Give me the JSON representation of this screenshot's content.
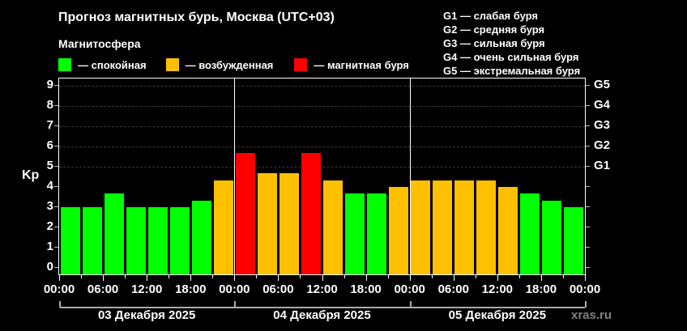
{
  "header": {
    "title": "Прогноз магнитных бурь, Москва (UTC+03)",
    "subtitle": "Магнитосфера"
  },
  "legend": [
    {
      "label": "— спокойная",
      "color": "#00FF00"
    },
    {
      "label": "— возбужденная",
      "color": "#FFC000"
    },
    {
      "label": "— магнитная буря",
      "color": "#FF0000"
    }
  ],
  "gscale": [
    "G1 — слабая буря",
    "G2 — средняя буря",
    "G3 — сильная буря",
    "G4 — очень сильная буря",
    "G5 — экстремальная буря"
  ],
  "watermark": "xras.ru",
  "chart_data": {
    "type": "bar",
    "title": "Прогноз магнитных бурь, Москва (UTC+03)",
    "subtitle": "Магнитосфера",
    "xlabel": "",
    "ylabel": "Kp",
    "ylim": [
      0,
      9
    ],
    "yticks": [
      0,
      1,
      2,
      3,
      4,
      5,
      6,
      7,
      8,
      9
    ],
    "right_axis_labels": {
      "5": "G1",
      "6": "G2",
      "7": "G3",
      "8": "G4",
      "9": "G5"
    },
    "grid": "horizontal dashed at Kp 5-9",
    "xtick_labels": [
      "00:00",
      "06:00",
      "12:00",
      "18:00",
      "00:00",
      "06:00",
      "12:00",
      "18:00",
      "00:00",
      "06:00",
      "12:00",
      "18:00",
      "00:00"
    ],
    "days": [
      "03 Декабря 2025",
      "04 Декабря 2025",
      "05 Декабря 2025"
    ],
    "categories": [
      "03.12 00:00",
      "03.12 03:00",
      "03.12 06:00",
      "03.12 09:00",
      "03.12 12:00",
      "03.12 15:00",
      "03.12 18:00",
      "03.12 21:00",
      "04.12 00:00",
      "04.12 03:00",
      "04.12 06:00",
      "04.12 09:00",
      "04.12 12:00",
      "04.12 15:00",
      "04.12 18:00",
      "04.12 21:00",
      "05.12 00:00",
      "05.12 03:00",
      "05.12 06:00",
      "05.12 09:00",
      "05.12 12:00",
      "05.12 15:00",
      "05.12 18:00",
      "05.12 21:00"
    ],
    "values": [
      3,
      3,
      3.67,
      3,
      3,
      3,
      3.33,
      4.33,
      5.67,
      4.67,
      4.67,
      5.67,
      4.33,
      3.67,
      3.67,
      4,
      4.33,
      4.33,
      4.33,
      4.33,
      4,
      3.67,
      3.33,
      3
    ],
    "status": [
      "calm",
      "calm",
      "calm",
      "calm",
      "calm",
      "calm",
      "calm",
      "excited",
      "storm",
      "excited",
      "excited",
      "storm",
      "excited",
      "calm",
      "calm",
      "excited",
      "excited",
      "excited",
      "excited",
      "excited",
      "excited",
      "calm",
      "calm",
      "calm"
    ],
    "colors": {
      "calm": "#00FF00",
      "excited": "#FFC000",
      "storm": "#FF0000"
    },
    "legend": [
      "спокойная",
      "возбужденная",
      "магнитная буря"
    ],
    "legend_position": "top-left"
  }
}
